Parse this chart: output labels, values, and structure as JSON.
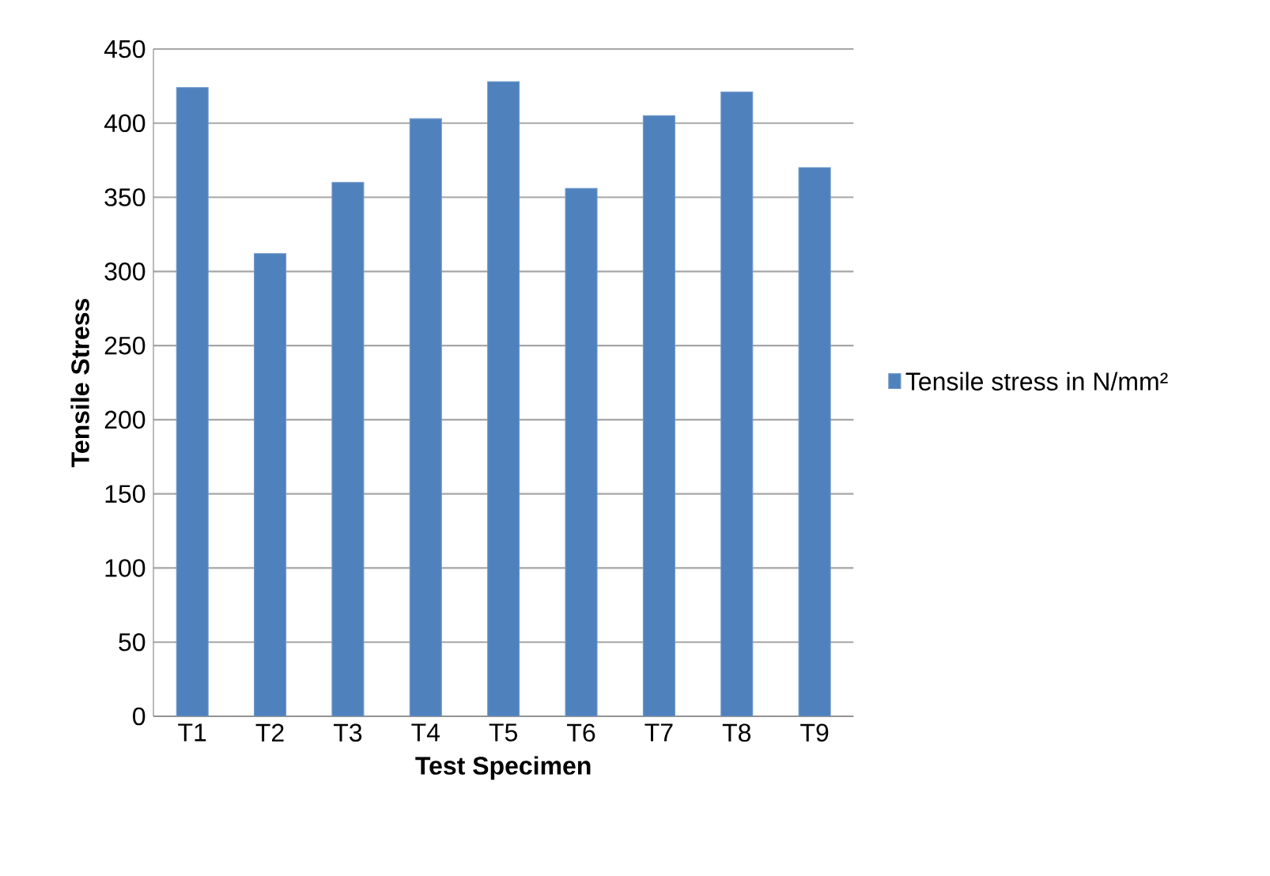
{
  "chart_data": {
    "type": "bar",
    "xlabel": "Test Specimen",
    "ylabel": "Tensile Stress",
    "categories": [
      "T1",
      "T2",
      "T3",
      "T4",
      "T5",
      "T6",
      "T7",
      "T8",
      "T9"
    ],
    "series": [
      {
        "name": "Tensile stress in N/mm²",
        "color": "#4f81bd",
        "values": [
          424,
          312,
          360,
          403,
          428,
          356,
          405,
          421,
          370
        ]
      }
    ],
    "ylim": [
      0,
      450
    ],
    "yticks": [
      0,
      50,
      100,
      150,
      200,
      250,
      300,
      350,
      400,
      450
    ],
    "grid": "y",
    "legend": "right"
  }
}
